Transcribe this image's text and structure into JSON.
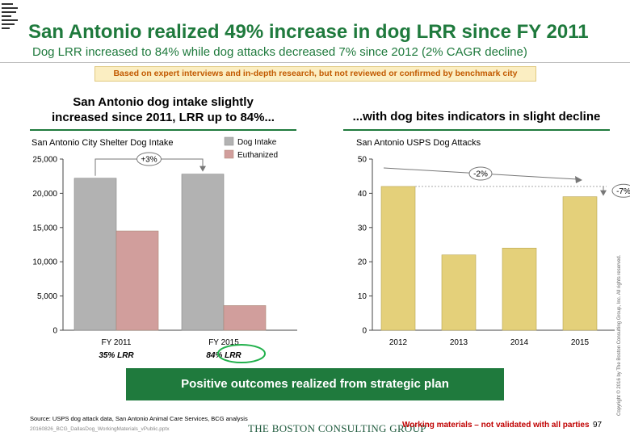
{
  "title": "San Antonio realized 49% increase in dog LRR since FY 2011",
  "subtitle": "Dog LRR increased to 84% while dog attacks decreased 7% since 2012 (2% CAGR decline)",
  "note": "Based on expert interviews and in-depth research, but not reviewed or confirmed by benchmark city",
  "left_section": {
    "heading_line1": "San Antonio dog intake slightly",
    "heading_line2": "increased since 2011, LRR up to 84%..."
  },
  "right_section": {
    "heading": "...with dog bites indicators in slight decline"
  },
  "banner": "Positive outcomes realized from strategic plan",
  "source": "Source: USPS dog attack data, San Antonio Animal Care Services, BCG analysis",
  "file_name": "20160826_BCG_DallasDog_WorkingMaterials_vPublic.pptx",
  "bcg_logo": "THE BOSTON CONSULTING GROUP",
  "working_note": "Working materials – not validated with all parties",
  "page_number": "97",
  "copyright": "Copyright © 2016 by The Boston Consulting Group, Inc. All rights reserved.",
  "colors": {
    "green": "#1f7a3d",
    "intake": "#b2b2b2",
    "euthanized": "#d19e9c",
    "attacks": "#e4d07a",
    "orange": "#c25a00"
  },
  "chart_data": [
    {
      "type": "bar",
      "title": "San Antonio City Shelter Dog Intake",
      "categories": [
        "FY 2011",
        "FY 2015"
      ],
      "category_notes": [
        "35% LRR",
        "84% LRR"
      ],
      "series": [
        {
          "name": "Dog Intake",
          "values": [
            22200,
            22800
          ]
        },
        {
          "name": "Euthanized",
          "values": [
            14500,
            3600
          ]
        }
      ],
      "y_ticks": [
        "0",
        "5,000",
        "10,000",
        "15,000",
        "20,000",
        "25,000"
      ],
      "ylim": [
        0,
        25000
      ],
      "annotation": "+3%",
      "legend": "top-right"
    },
    {
      "type": "bar",
      "title": "San Antonio USPS Dog Attacks",
      "categories": [
        "2012",
        "2013",
        "2014",
        "2015"
      ],
      "values": [
        42,
        22,
        24,
        39
      ],
      "y_ticks": [
        "0",
        "10",
        "20",
        "30",
        "40",
        "50"
      ],
      "ylim": [
        0,
        50
      ],
      "annotations": [
        "-2%",
        "-7%"
      ]
    }
  ]
}
